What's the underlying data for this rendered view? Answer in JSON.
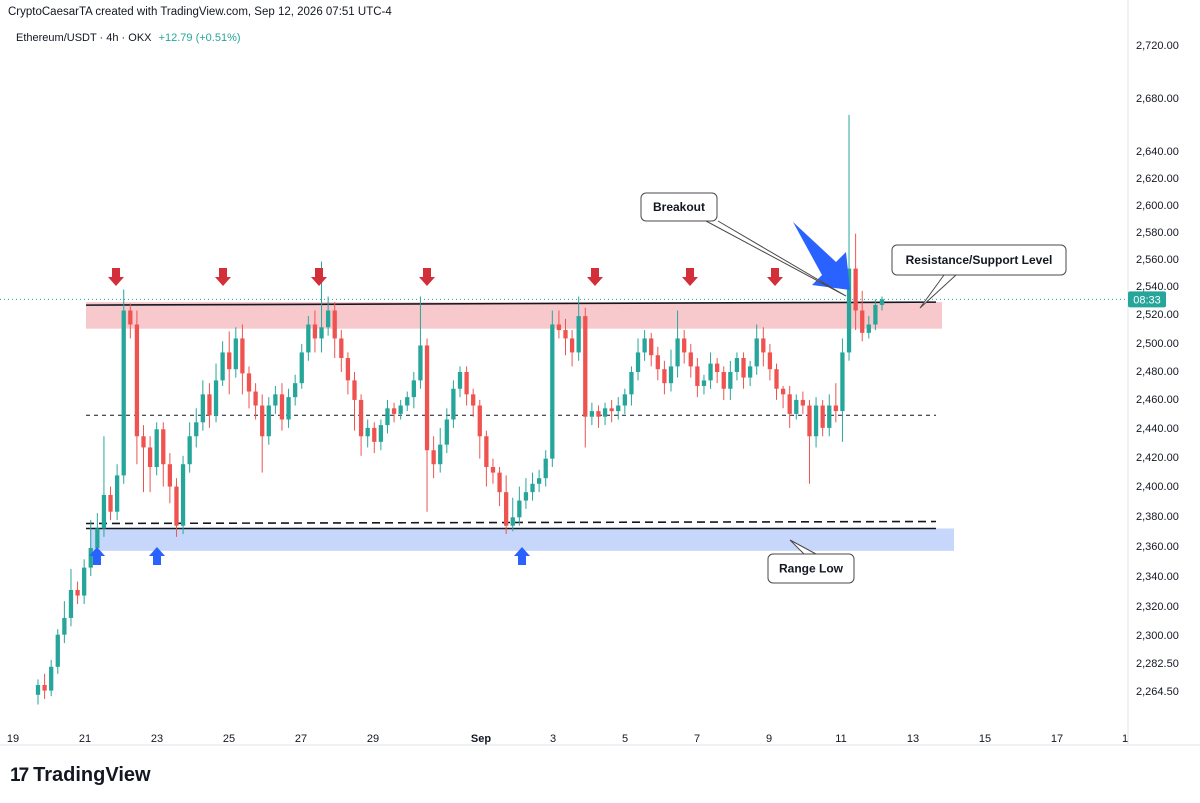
{
  "header": {
    "credit": "CryptoCaesarTA created with TradingView.com, Sep 12, 2026 07:51 UTC-4",
    "symbol": "Ethereum/USDT · 4h · OKX",
    "change": "+12.79 (+0.51%)"
  },
  "footer": {
    "logo_text": "TradingView",
    "logo_mark": "17"
  },
  "colors": {
    "up": "#26a69a",
    "down": "#ef5350",
    "resistance_zone": "#f8c9cc",
    "support_zone": "#c7d7fb",
    "arrow_red": "#d32f3b",
    "arrow_blue": "#2962ff",
    "price_tag": "#26a69a"
  },
  "chart_data": {
    "type": "candlestick",
    "y_ticks": [
      "2,720.00",
      "2,680.00",
      "2,640.00",
      "2,620.00",
      "2,600.00",
      "2,580.00",
      "2,560.00",
      "2,540.00",
      "2,520.00",
      "2,500.00",
      "2,480.00",
      "2,460.00",
      "2,440.00",
      "2,420.00",
      "2,400.00",
      "2,380.00",
      "2,360.00",
      "2,340.00",
      "2,320.00",
      "2,300.00",
      "2,282.50",
      "2,264.50"
    ],
    "x_ticks": [
      "19",
      "21",
      "23",
      "25",
      "27",
      "29",
      "Sep",
      "3",
      "5",
      "7",
      "9",
      "11",
      "13",
      "15",
      "17",
      "1"
    ],
    "current_price_label": "08:33",
    "current_price": 2538,
    "levels": {
      "resistance": 2536,
      "resistance_zone": [
        2517,
        2536
      ],
      "midline": 2455,
      "range_low_solid": 2374,
      "range_low_dashed": 2379,
      "support_zone": [
        2358,
        2374
      ]
    },
    "annotations": [
      "Breakout",
      "Resistance/Support Level",
      "Range Low"
    ],
    "candles": [
      [
        2255,
        2262,
        2248,
        2266
      ],
      [
        2262,
        2258,
        2252,
        2270
      ],
      [
        2258,
        2275,
        2254,
        2280
      ],
      [
        2275,
        2298,
        2270,
        2302
      ],
      [
        2298,
        2310,
        2292,
        2322
      ],
      [
        2310,
        2330,
        2304,
        2345
      ],
      [
        2330,
        2326,
        2320,
        2336
      ],
      [
        2326,
        2346,
        2320,
        2352
      ],
      [
        2346,
        2360,
        2340,
        2380
      ],
      [
        2360,
        2374,
        2354,
        2385
      ],
      [
        2374,
        2398,
        2368,
        2440
      ],
      [
        2398,
        2386,
        2380,
        2404
      ],
      [
        2386,
        2412,
        2380,
        2420
      ],
      [
        2412,
        2530,
        2406,
        2545
      ],
      [
        2530,
        2520,
        2510,
        2535
      ],
      [
        2520,
        2440,
        2420,
        2530
      ],
      [
        2440,
        2432,
        2400,
        2448
      ],
      [
        2432,
        2418,
        2400,
        2440
      ],
      [
        2418,
        2445,
        2412,
        2450
      ],
      [
        2445,
        2420,
        2404,
        2450
      ],
      [
        2420,
        2404,
        2392,
        2428
      ],
      [
        2404,
        2376,
        2368,
        2410
      ],
      [
        2376,
        2420,
        2370,
        2426
      ],
      [
        2420,
        2440,
        2414,
        2450
      ],
      [
        2440,
        2450,
        2432,
        2460
      ],
      [
        2450,
        2470,
        2444,
        2480
      ],
      [
        2470,
        2455,
        2446,
        2478
      ],
      [
        2455,
        2480,
        2450,
        2492
      ],
      [
        2480,
        2500,
        2476,
        2508
      ],
      [
        2500,
        2488,
        2470,
        2515
      ],
      [
        2488,
        2510,
        2482,
        2518
      ],
      [
        2510,
        2485,
        2470,
        2520
      ],
      [
        2485,
        2472,
        2460,
        2490
      ],
      [
        2472,
        2462,
        2452,
        2478
      ],
      [
        2462,
        2440,
        2414,
        2470
      ],
      [
        2440,
        2462,
        2434,
        2468
      ],
      [
        2462,
        2470,
        2456,
        2476
      ],
      [
        2470,
        2452,
        2444,
        2478
      ],
      [
        2452,
        2468,
        2446,
        2474
      ],
      [
        2468,
        2478,
        2462,
        2484
      ],
      [
        2478,
        2500,
        2474,
        2506
      ],
      [
        2500,
        2520,
        2494,
        2526
      ],
      [
        2520,
        2510,
        2500,
        2530
      ],
      [
        2510,
        2518,
        2500,
        2565
      ],
      [
        2518,
        2530,
        2512,
        2540
      ],
      [
        2530,
        2510,
        2496,
        2536
      ],
      [
        2510,
        2496,
        2486,
        2516
      ],
      [
        2496,
        2480,
        2470,
        2500
      ],
      [
        2480,
        2466,
        2444,
        2486
      ],
      [
        2466,
        2440,
        2426,
        2470
      ],
      [
        2440,
        2446,
        2432,
        2452
      ],
      [
        2446,
        2436,
        2428,
        2450
      ],
      [
        2436,
        2448,
        2430,
        2452
      ],
      [
        2448,
        2460,
        2442,
        2466
      ],
      [
        2460,
        2456,
        2450,
        2464
      ],
      [
        2456,
        2462,
        2452,
        2466
      ],
      [
        2462,
        2468,
        2458,
        2472
      ],
      [
        2468,
        2480,
        2460,
        2486
      ],
      [
        2480,
        2505,
        2474,
        2540
      ],
      [
        2505,
        2430,
        2386,
        2510
      ],
      [
        2430,
        2420,
        2410,
        2440
      ],
      [
        2420,
        2434,
        2414,
        2446
      ],
      [
        2434,
        2452,
        2428,
        2460
      ],
      [
        2452,
        2474,
        2446,
        2480
      ],
      [
        2474,
        2486,
        2468,
        2490
      ],
      [
        2486,
        2470,
        2462,
        2490
      ],
      [
        2470,
        2462,
        2454,
        2474
      ],
      [
        2462,
        2440,
        2424,
        2466
      ],
      [
        2440,
        2418,
        2404,
        2444
      ],
      [
        2418,
        2414,
        2406,
        2424
      ],
      [
        2414,
        2400,
        2390,
        2418
      ],
      [
        2400,
        2376,
        2370,
        2412
      ],
      [
        2376,
        2382,
        2372,
        2396
      ],
      [
        2382,
        2394,
        2376,
        2404
      ],
      [
        2394,
        2400,
        2388,
        2410
      ],
      [
        2400,
        2406,
        2394,
        2414
      ],
      [
        2406,
        2410,
        2400,
        2416
      ],
      [
        2410,
        2424,
        2404,
        2430
      ],
      [
        2424,
        2520,
        2418,
        2530
      ],
      [
        2520,
        2516,
        2510,
        2530
      ],
      [
        2516,
        2510,
        2498,
        2524
      ],
      [
        2510,
        2500,
        2490,
        2516
      ],
      [
        2500,
        2526,
        2494,
        2540
      ],
      [
        2526,
        2454,
        2432,
        2532
      ],
      [
        2454,
        2458,
        2448,
        2464
      ],
      [
        2458,
        2454,
        2446,
        2462
      ],
      [
        2454,
        2460,
        2448,
        2464
      ],
      [
        2460,
        2458,
        2450,
        2466
      ],
      [
        2458,
        2462,
        2452,
        2468
      ],
      [
        2462,
        2470,
        2456,
        2474
      ],
      [
        2470,
        2486,
        2462,
        2490
      ],
      [
        2486,
        2500,
        2480,
        2510
      ],
      [
        2500,
        2510,
        2494,
        2516
      ],
      [
        2510,
        2498,
        2490,
        2514
      ],
      [
        2498,
        2488,
        2480,
        2504
      ],
      [
        2488,
        2478,
        2470,
        2494
      ],
      [
        2478,
        2490,
        2472,
        2502
      ],
      [
        2490,
        2510,
        2482,
        2530
      ],
      [
        2510,
        2500,
        2492,
        2516
      ],
      [
        2500,
        2490,
        2482,
        2506
      ],
      [
        2490,
        2476,
        2468,
        2496
      ],
      [
        2476,
        2480,
        2470,
        2484
      ],
      [
        2480,
        2492,
        2474,
        2500
      ],
      [
        2492,
        2486,
        2478,
        2496
      ],
      [
        2486,
        2474,
        2466,
        2490
      ],
      [
        2474,
        2486,
        2466,
        2494
      ],
      [
        2486,
        2496,
        2480,
        2500
      ],
      [
        2496,
        2482,
        2474,
        2500
      ],
      [
        2482,
        2490,
        2476,
        2494
      ],
      [
        2490,
        2510,
        2484,
        2520
      ],
      [
        2510,
        2500,
        2490,
        2518
      ],
      [
        2500,
        2488,
        2480,
        2506
      ],
      [
        2488,
        2474,
        2466,
        2492
      ],
      [
        2474,
        2470,
        2460,
        2476
      ],
      [
        2470,
        2456,
        2446,
        2476
      ],
      [
        2456,
        2466,
        2452,
        2470
      ],
      [
        2466,
        2462,
        2456,
        2472
      ],
      [
        2462,
        2440,
        2406,
        2466
      ],
      [
        2440,
        2462,
        2432,
        2468
      ],
      [
        2462,
        2446,
        2440,
        2466
      ],
      [
        2446,
        2462,
        2440,
        2470
      ],
      [
        2462,
        2458,
        2450,
        2478
      ],
      [
        2458,
        2500,
        2436,
        2510
      ],
      [
        2500,
        2560,
        2494,
        2670
      ],
      [
        2560,
        2530,
        2516,
        2585
      ],
      [
        2530,
        2514,
        2508,
        2544
      ],
      [
        2514,
        2520,
        2510,
        2526
      ],
      [
        2520,
        2534,
        2516,
        2538
      ],
      [
        2534,
        2538,
        2530,
        2540
      ]
    ]
  }
}
